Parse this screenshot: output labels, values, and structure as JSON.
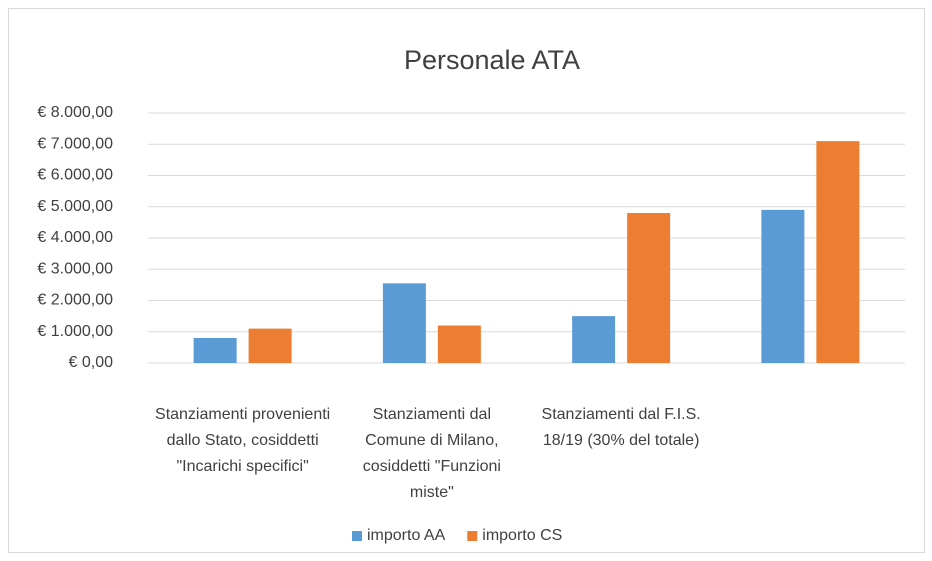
{
  "chart_data": {
    "type": "bar",
    "title": "Personale ATA",
    "categories": [
      "Stanziamenti provenienti dallo Stato, cosiddetti \"Incarichi specifici\"",
      "Stanziamenti dal Comune di Milano, cosiddetti \"Funzioni miste\"",
      "Stanziamenti dal F.I.S. 18/19 (30% del totale)",
      null
    ],
    "series": [
      {
        "name": "importo AA",
        "color": "#5b9bd5",
        "values": [
          800,
          2550,
          1500,
          4900
        ]
      },
      {
        "name": "importo CS",
        "color": "#ed7d31",
        "values": [
          1100,
          1200,
          4800,
          7100
        ]
      }
    ],
    "ylim": [
      0,
      8000
    ],
    "yticks": [
      {
        "value": 0,
        "label": "€ 0,00"
      },
      {
        "value": 1000,
        "label": "€ 1.000,00"
      },
      {
        "value": 2000,
        "label": "€ 2.000,00"
      },
      {
        "value": 3000,
        "label": "€ 3.000,00"
      },
      {
        "value": 4000,
        "label": "€ 4.000,00"
      },
      {
        "value": 5000,
        "label": "€ 5.000,00"
      },
      {
        "value": 6000,
        "label": "€ 6.000,00"
      },
      {
        "value": 7000,
        "label": "€ 7.000,00"
      },
      {
        "value": 8000,
        "label": "€ 8.000,00"
      }
    ],
    "grid": true,
    "legend": "bottom"
  }
}
